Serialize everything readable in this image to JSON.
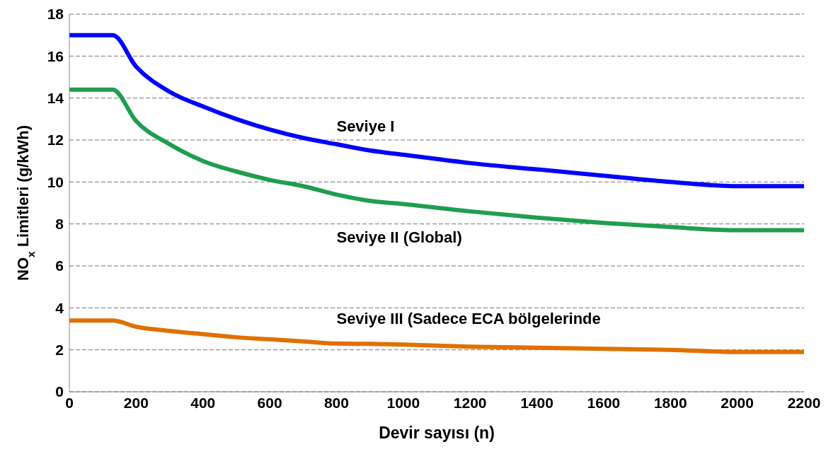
{
  "chart_data": {
    "type": "line",
    "xlabel": "Devir sayısı (n)",
    "ylabel": "NO$_{x}$ Limitleri (g/kWh)",
    "xlim": [
      0,
      2200
    ],
    "xticks": [
      0,
      200,
      400,
      600,
      800,
      1000,
      1200,
      1400,
      1600,
      1800,
      2000,
      2200
    ],
    "ylim": [
      0,
      18
    ],
    "yticks": [
      0,
      2,
      4,
      6,
      8,
      10,
      12,
      14,
      16,
      18
    ],
    "grid": "y",
    "marker": "none",
    "line_style": "solid",
    "x": [
      0,
      130,
      200,
      300,
      400,
      500,
      600,
      700,
      800,
      900,
      1000,
      1200,
      1400,
      1600,
      1800,
      2000,
      2200
    ],
    "series": [
      {
        "name": "Seviye I",
        "color": "#0000ff",
        "values": [
          17,
          17,
          15.5,
          14.3,
          13.6,
          13.0,
          12.5,
          12.1,
          11.8,
          11.5,
          11.3,
          10.9,
          10.6,
          10.3,
          10.0,
          9.8,
          9.8
        ]
      },
      {
        "name": "Seviye II (Global)",
        "color": "#1f9e50",
        "values": [
          14.4,
          14.4,
          12.9,
          11.8,
          11.0,
          10.5,
          10.1,
          9.8,
          9.4,
          9.1,
          8.95,
          8.6,
          8.3,
          8.05,
          7.85,
          7.7,
          7.7
        ]
      },
      {
        "name": "Seviye III (Sadece ECA bölgelerinde",
        "color": "#e07000",
        "values": [
          3.4,
          3.4,
          3.1,
          2.9,
          2.75,
          2.6,
          2.5,
          2.4,
          2.3,
          2.28,
          2.25,
          2.15,
          2.1,
          2.05,
          2.0,
          1.9,
          1.9
        ]
      }
    ]
  }
}
